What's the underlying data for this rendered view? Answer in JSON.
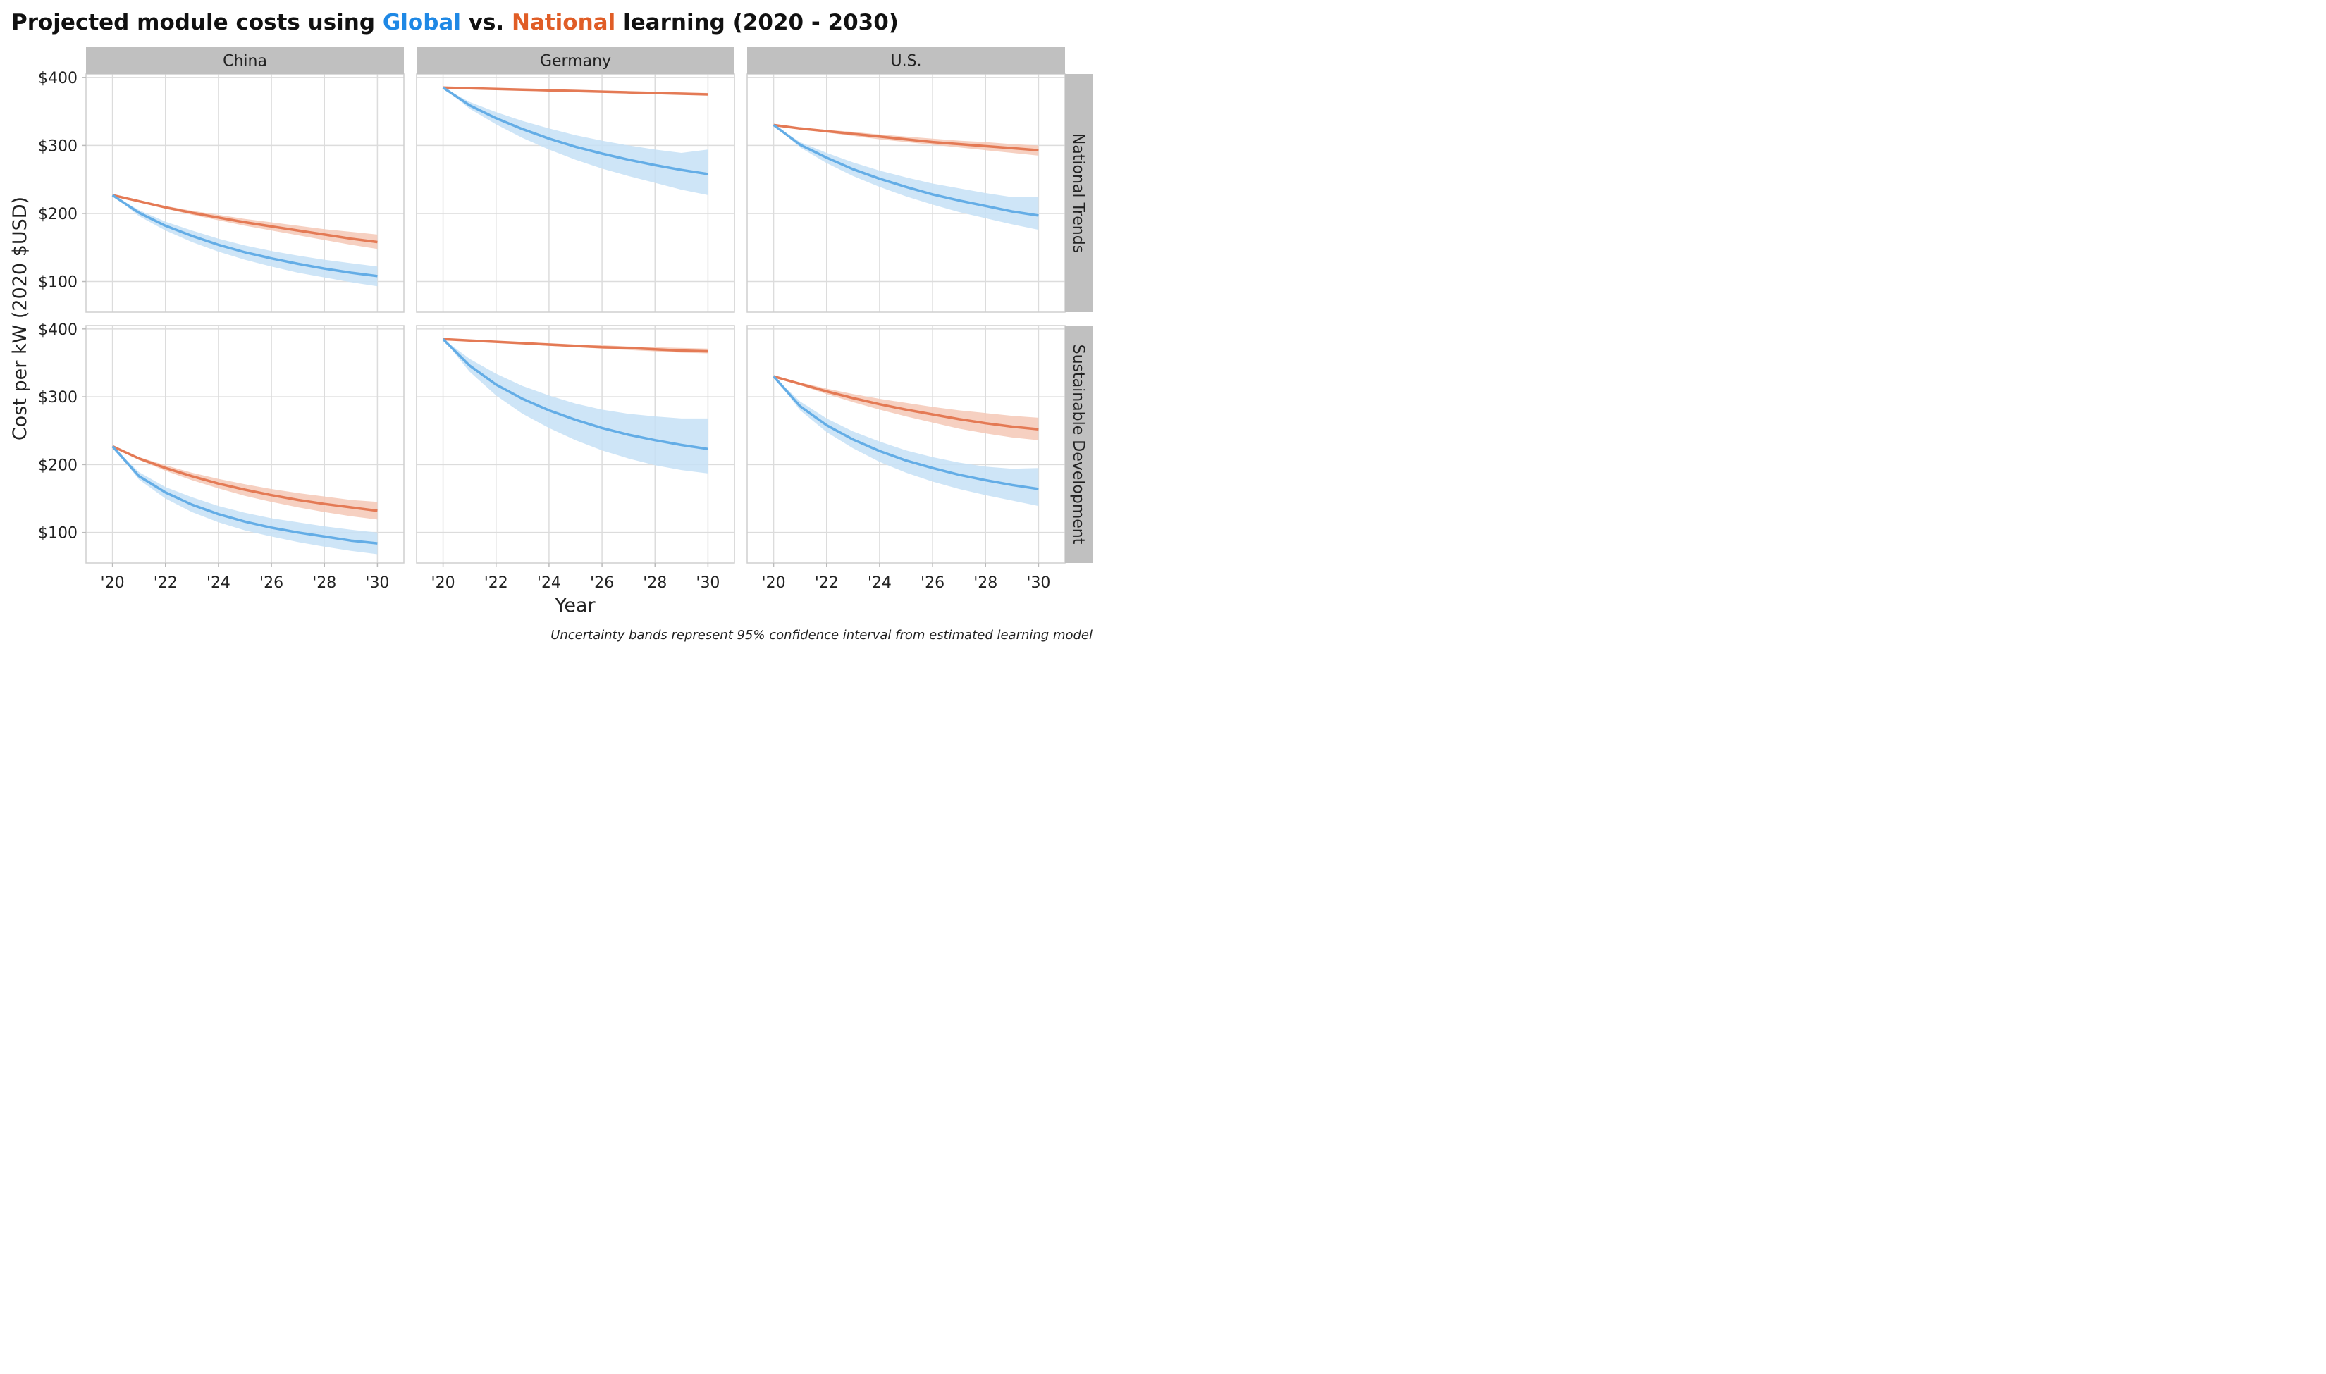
{
  "title": {
    "prefix": "Projected module costs using ",
    "global_word": "Global",
    "middle": " vs. ",
    "national_word": "National",
    "suffix": " learning (2020 - 2030)"
  },
  "colors": {
    "global": "#1e88e5",
    "national": "#e05d26",
    "global_line": "#64ade6",
    "national_line": "#e47a55",
    "global_band": "#c5e0f6",
    "national_band": "#f5c8b6",
    "strip_bg": "#c0c0c0",
    "grid": "#dcdcdc"
  },
  "caption": "Uncertainty bands represent 95% confidence interval from estimated learning model",
  "chart_data": {
    "type": "line",
    "xlabel": "Year",
    "ylabel": "Cost per kW (2020 $USD)",
    "x": [
      2020,
      2021,
      2022,
      2023,
      2024,
      2025,
      2026,
      2027,
      2028,
      2029,
      2030
    ],
    "xlim": [
      2019,
      2031
    ],
    "ylim": [
      55,
      405
    ],
    "x_ticks": [
      2020,
      2022,
      2024,
      2026,
      2028,
      2030
    ],
    "x_tick_labels": [
      "'20",
      "'22",
      "'24",
      "'26",
      "'28",
      "'30"
    ],
    "y_ticks": [
      100,
      200,
      300,
      400
    ],
    "y_tick_labels": [
      "$100",
      "$200",
      "$300",
      "$400"
    ],
    "columns": [
      "China",
      "Germany",
      "U.S."
    ],
    "rows": [
      "National Trends",
      "Sustainable Development"
    ],
    "panels": [
      {
        "country": "China",
        "scenario": "National Trends",
        "global": {
          "values": [
            227,
            201,
            182,
            167,
            154,
            143,
            134,
            126,
            119,
            113,
            108
          ],
          "lower": [
            227,
            196,
            175,
            158,
            144,
            132,
            122,
            113,
            106,
            99,
            93
          ],
          "upper": [
            227,
            205,
            188,
            175,
            163,
            153,
            145,
            138,
            132,
            127,
            122
          ]
        },
        "national": {
          "values": [
            227,
            218,
            209,
            201,
            194,
            187,
            181,
            175,
            169,
            163,
            158
          ],
          "lower": [
            227,
            217,
            207,
            198,
            190,
            182,
            175,
            168,
            161,
            154,
            148
          ],
          "upper": [
            227,
            219,
            211,
            204,
            198,
            192,
            187,
            182,
            177,
            173,
            169
          ]
        }
      },
      {
        "country": "Germany",
        "scenario": "National Trends",
        "global": {
          "values": [
            385,
            359,
            340,
            324,
            310,
            298,
            288,
            279,
            271,
            264,
            258
          ],
          "lower": [
            385,
            354,
            331,
            311,
            294,
            279,
            266,
            255,
            245,
            235,
            227
          ],
          "upper": [
            385,
            364,
            349,
            336,
            325,
            315,
            307,
            300,
            294,
            289,
            294
          ]
        },
        "national": {
          "values": [
            385,
            384,
            383,
            382,
            381,
            380,
            379,
            378,
            377,
            376,
            375
          ],
          "lower": [
            385,
            384,
            383,
            381,
            380,
            379,
            378,
            377,
            376,
            375,
            374
          ],
          "upper": [
            385,
            384,
            383,
            382,
            382,
            381,
            380,
            379,
            378,
            378,
            377
          ]
        }
      },
      {
        "country": "U.S.",
        "scenario": "National Trends",
        "global": {
          "values": [
            330,
            301,
            282,
            265,
            251,
            239,
            228,
            219,
            211,
            203,
            197
          ],
          "lower": [
            330,
            297,
            274,
            255,
            239,
            225,
            213,
            202,
            193,
            184,
            176
          ],
          "upper": [
            330,
            305,
            289,
            275,
            263,
            253,
            244,
            237,
            230,
            224,
            224
          ]
        },
        "national": {
          "values": [
            330,
            325,
            321,
            317,
            313,
            309,
            305,
            302,
            299,
            296,
            293
          ],
          "lower": [
            330,
            324,
            319,
            314,
            309,
            305,
            301,
            297,
            293,
            289,
            285
          ],
          "upper": [
            330,
            326,
            323,
            320,
            316,
            313,
            310,
            307,
            305,
            302,
            300
          ]
        }
      },
      {
        "country": "China",
        "scenario": "Sustainable Development",
        "global": {
          "values": [
            227,
            183,
            159,
            141,
            127,
            116,
            107,
            100,
            94,
            88,
            84
          ],
          "lower": [
            227,
            178,
            150,
            130,
            115,
            103,
            94,
            86,
            79,
            73,
            68
          ],
          "upper": [
            227,
            189,
            167,
            152,
            139,
            129,
            121,
            115,
            109,
            104,
            100
          ]
        },
        "national": {
          "values": [
            227,
            209,
            195,
            183,
            172,
            163,
            155,
            148,
            142,
            137,
            132
          ],
          "lower": [
            227,
            207,
            191,
            177,
            165,
            154,
            145,
            137,
            130,
            124,
            119
          ],
          "upper": [
            227,
            211,
            199,
            188,
            179,
            171,
            164,
            158,
            153,
            148,
            145
          ]
        }
      },
      {
        "country": "Germany",
        "scenario": "Sustainable Development",
        "global": {
          "values": [
            385,
            346,
            318,
            297,
            280,
            266,
            254,
            244,
            236,
            229,
            223
          ],
          "lower": [
            385,
            337,
            302,
            275,
            254,
            236,
            221,
            209,
            199,
            192,
            187
          ],
          "upper": [
            385,
            356,
            334,
            316,
            302,
            290,
            281,
            275,
            271,
            268,
            268
          ]
        },
        "national": {
          "values": [
            385,
            383,
            381,
            379,
            377,
            375,
            373,
            372,
            370,
            368,
            367
          ],
          "lower": [
            385,
            383,
            380,
            378,
            375,
            373,
            371,
            369,
            367,
            365,
            364
          ],
          "upper": [
            385,
            383,
            382,
            380,
            379,
            377,
            376,
            374,
            373,
            372,
            371
          ]
        }
      },
      {
        "country": "U.S.",
        "scenario": "Sustainable Development",
        "global": {
          "values": [
            330,
            286,
            258,
            237,
            220,
            206,
            195,
            185,
            177,
            170,
            164
          ],
          "lower": [
            330,
            280,
            248,
            224,
            204,
            188,
            175,
            164,
            155,
            147,
            139
          ],
          "upper": [
            330,
            293,
            268,
            249,
            234,
            221,
            211,
            203,
            197,
            194,
            195
          ]
        },
        "national": {
          "values": [
            330,
            319,
            308,
            298,
            289,
            281,
            274,
            267,
            261,
            256,
            252
          ],
          "lower": [
            330,
            317,
            304,
            292,
            281,
            271,
            262,
            253,
            246,
            240,
            236
          ],
          "upper": [
            330,
            321,
            312,
            304,
            297,
            291,
            285,
            280,
            276,
            272,
            269
          ]
        }
      }
    ]
  }
}
